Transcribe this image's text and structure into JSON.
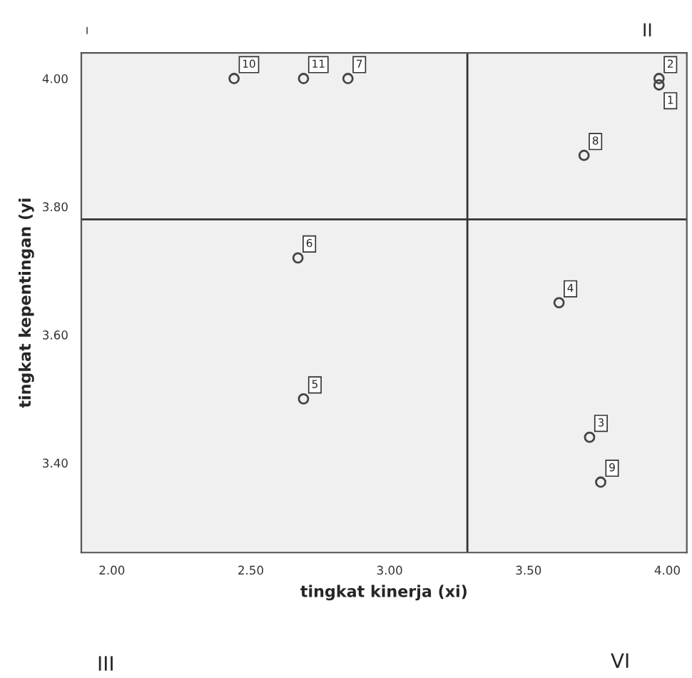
{
  "chart_data": {
    "type": "scatter",
    "xlabel": "tingkat kinerja (xi)",
    "ylabel": "tingkat kepentingan (yi",
    "x": [
      3.97,
      3.97,
      3.72,
      3.61,
      2.69,
      2.67,
      2.85,
      3.7,
      3.76,
      2.44,
      2.69
    ],
    "values": [
      3.99,
      4.0,
      3.44,
      3.65,
      3.5,
      3.72,
      4.0,
      3.88,
      3.37,
      4.0,
      4.0
    ],
    "color": "#444444",
    "marker": "circle",
    "xlim": [
      1.89,
      4.07
    ],
    "ylim": [
      3.26,
      4.04
    ],
    "xticks": [
      {
        "value": 2,
        "label": "2.00"
      },
      {
        "value": 2.5,
        "label": "2.50"
      },
      {
        "value": 3,
        "label": "3.00"
      },
      {
        "value": 3.5,
        "label": "3.50"
      },
      {
        "value": 4,
        "label": "4.00"
      }
    ],
    "yticks": [
      {
        "value": 3.4,
        "label": "3.40"
      },
      {
        "value": 3.6,
        "label": "3.60"
      },
      {
        "value": 3.8,
        "label": "3.80"
      },
      {
        "value": 4,
        "label": "4.00"
      }
    ],
    "ref_lines": [
      {
        "axis": "x",
        "value": 3.28,
        "color": "#333333"
      },
      {
        "axis": "y",
        "value": 3.78,
        "color": "#333333"
      }
    ],
    "grid": false,
    "annotations": [
      {
        "text": "1",
        "x": 3.97,
        "y": 3.99
      },
      {
        "text": "2",
        "x": 3.97,
        "y": 4.0
      },
      {
        "text": "3",
        "x": 3.72,
        "y": 3.44
      },
      {
        "text": "4",
        "x": 3.61,
        "y": 3.65
      },
      {
        "text": "5",
        "x": 2.69,
        "y": 3.5
      },
      {
        "text": "6",
        "x": 2.67,
        "y": 3.72
      },
      {
        "text": "7",
        "x": 2.85,
        "y": 4.0
      },
      {
        "text": "8",
        "x": 3.7,
        "y": 3.88
      },
      {
        "text": "9",
        "x": 3.76,
        "y": 3.37
      },
      {
        "text": "10",
        "x": 2.44,
        "y": 4.0
      },
      {
        "text": "11",
        "x": 2.69,
        "y": 4.0
      },
      "I",
      "II",
      "III",
      "VI"
    ]
  }
}
